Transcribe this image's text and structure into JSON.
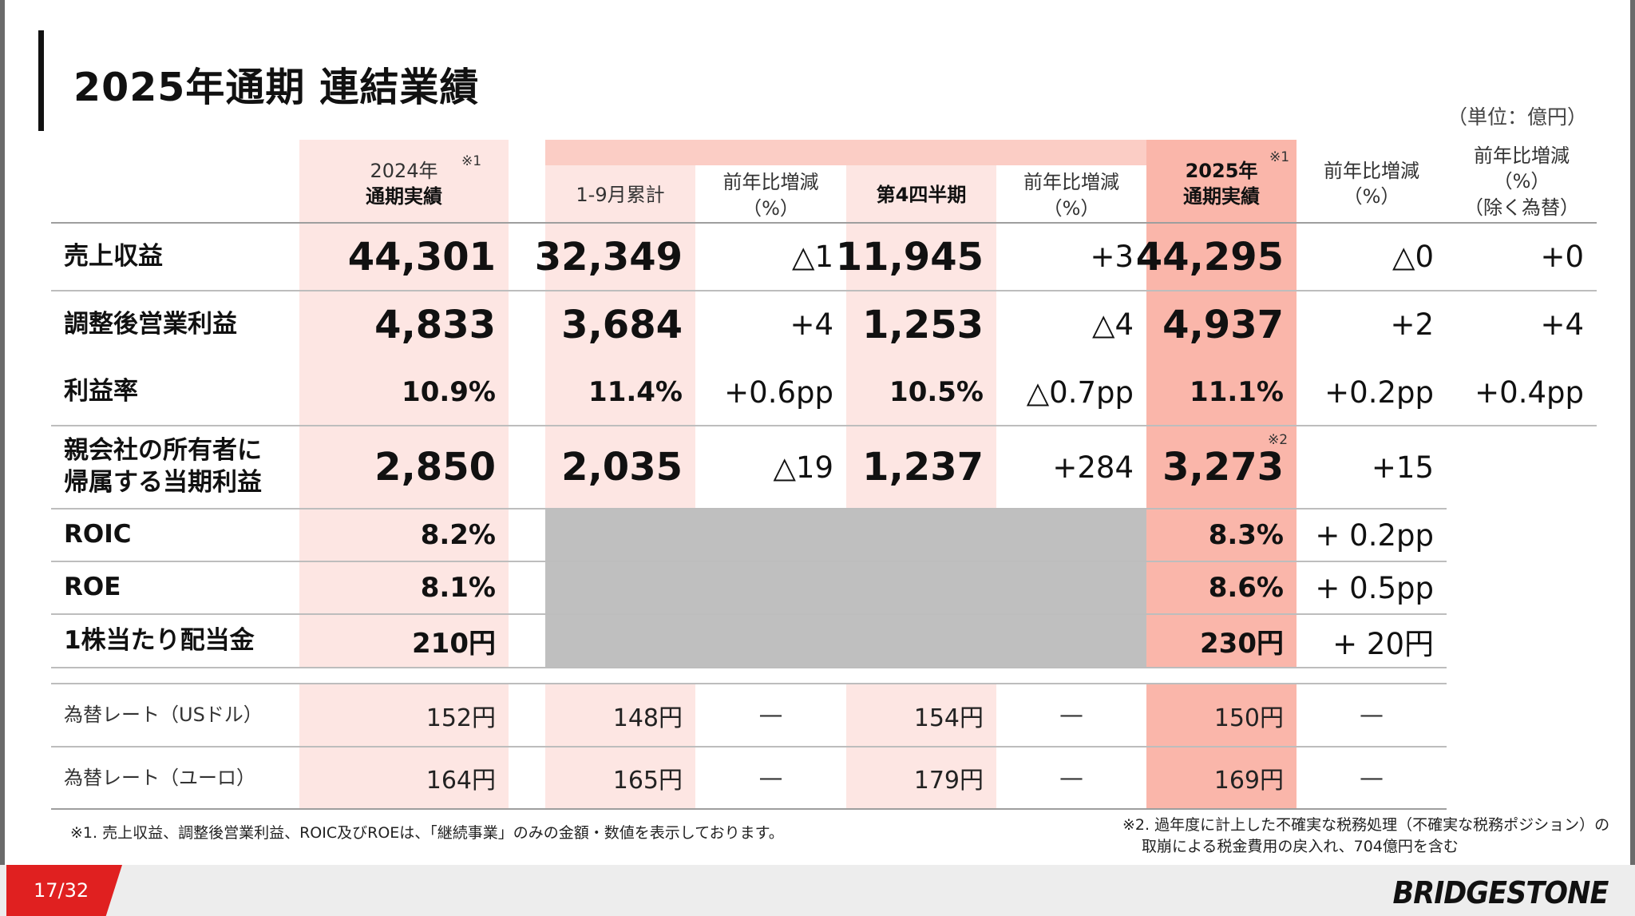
{
  "title": "2025年通期 連結業績",
  "unit": "（単位：億円）",
  "headers": {
    "fy2024": [
      "2024年",
      "通期実績"
    ],
    "cum9": "1-9月累計",
    "yoy_cum9": [
      "前年比増減",
      "（%）"
    ],
    "q4": "第4四半期",
    "yoy_q4": [
      "前年比増減",
      "（%）"
    ],
    "fy2025": [
      "2025年",
      "通期実績"
    ],
    "yoy_fy": [
      "前年比増減",
      "（%）"
    ],
    "yoy_fx": [
      "前年比増減",
      "（%）",
      "（除く為替）"
    ],
    "note_mark1": "※1"
  },
  "rows": [
    {
      "label": [
        "売上収益"
      ],
      "fy2024": "44,301",
      "cum9": "32,349",
      "yoy_cum9": "△1",
      "q4": "11,945",
      "yoy_q4": "+3",
      "fy2025": "44,295",
      "yoy_fy": "△0",
      "yoy_fx": "+0"
    },
    {
      "label": [
        "調整後営業利益"
      ],
      "fy2024": "4,833",
      "cum9": "3,684",
      "yoy_cum9": "+4",
      "q4": "1,253",
      "yoy_q4": "△4",
      "fy2025": "4,937",
      "yoy_fy": "+2",
      "yoy_fx": "+4"
    },
    {
      "label": [
        "利益率"
      ],
      "fy2024": "10.9%",
      "cum9": "11.4%",
      "yoy_cum9": "+0.6pp",
      "q4": "10.5%",
      "yoy_q4": "△0.7pp",
      "fy2025": "11.1%",
      "yoy_fy": "+0.2pp",
      "yoy_fx": "+0.4pp"
    },
    {
      "label": [
        "親会社の所有者に",
        "帰属する当期利益"
      ],
      "fy2024": "2,850",
      "cum9": "2,035",
      "yoy_cum9": "△19",
      "q4": "1,237",
      "yoy_q4": "+284",
      "fy2025": "3,273",
      "fy2025_mark": "※2",
      "yoy_fy": "+15"
    },
    {
      "label": [
        "ROIC"
      ],
      "fy2024": "8.2%",
      "fy2025": "8.3%",
      "yoy_fy": "+ 0.2pp"
    },
    {
      "label": [
        "ROE"
      ],
      "fy2024": "8.1%",
      "fy2025": "8.6%",
      "yoy_fy": "+ 0.5pp"
    },
    {
      "label": [
        "1株当たり配当金"
      ],
      "fy2024": "210円",
      "fy2025": "230円",
      "yoy_fy": "+ 20円"
    }
  ],
  "fx_rows": [
    {
      "label": "為替レート（USドル）",
      "fy2024": "152円",
      "cum9": "148円",
      "yoy_cum9": "—",
      "q4": "154円",
      "yoy_q4": "—",
      "fy2025": "150円",
      "yoy_fy": "—"
    },
    {
      "label": "為替レート（ユーロ）",
      "fy2024": "164円",
      "cum9": "165円",
      "yoy_cum9": "—",
      "q4": "179円",
      "yoy_q4": "—",
      "fy2025": "169円",
      "yoy_fy": "—"
    }
  ],
  "notes": {
    "note1": "※1. 売上収益、調整後営業利益、ROIC及びROEは、「継続事業」のみの金額・数値を表示しております。",
    "note2_line1": "※2. 過年度に計上した不確実な税務処理（不確実な税務ポジション）の",
    "note2_line2": "取崩による税金費用の戻入れ、704億円を含む"
  },
  "footer": {
    "page": "17/32",
    "logo": "BRIDGESTONE"
  },
  "colors": {
    "accent_red": "#e02020",
    "pink_light": "#fde6e3",
    "pink_dark": "#fab6aa",
    "gray": "#bfbfbf"
  }
}
